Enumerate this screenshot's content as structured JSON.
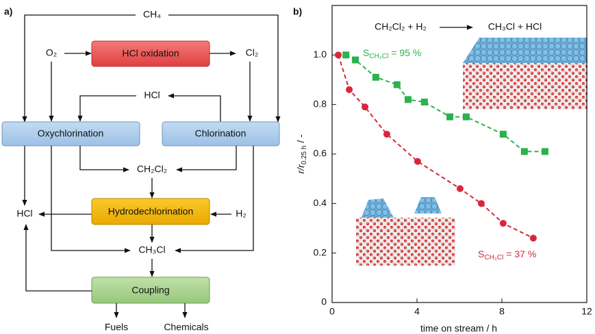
{
  "panel_a": {
    "label": "a)",
    "nodes": [
      "CH₄",
      "O₂",
      "HCl oxidation",
      "Cl₂",
      "HCl",
      "Oxychlorination",
      "Chlorination",
      "CH₂Cl₂",
      "HCl",
      "Hydrodechlorination",
      "H₂",
      "CH₃Cl",
      "Coupling",
      "Fuels",
      "Chemicals"
    ]
  },
  "chart_data": {
    "type": "scatter",
    "label": "b)",
    "reaction": {
      "reactants": "CH₂Cl₂ + H₂",
      "products": "CH₃Cl + HCl"
    },
    "xlabel": "time on stream / h",
    "ylabel": {
      "main": "r/r",
      "subscript": "0.25 h",
      "unit": "/ -"
    },
    "xlim": [
      0,
      12
    ],
    "xticks": [
      0,
      4,
      8,
      12
    ],
    "ylim": [
      0,
      1.2
    ],
    "yticks": [
      0,
      0.2,
      0.4,
      0.6,
      0.8,
      {
        "value": 1,
        "label": "1.0"
      }
    ],
    "series": [
      {
        "color": "#2bb24c",
        "marker": "square",
        "x": [
          0.65,
          1.1,
          2.06,
          3.06,
          3.58,
          4.35,
          5.55,
          6.32,
          8.06,
          9.06,
          10.03
        ],
        "values": [
          1.0,
          0.98,
          0.91,
          0.88,
          0.82,
          0.81,
          0.75,
          0.75,
          0.68,
          0.61,
          0.61
        ],
        "annotation": {
          "symbol": "S",
          "subscript": "CH₃Cl",
          "text": "= 95 %"
        }
      },
      {
        "color": "#d9263a",
        "marker": "circle",
        "x": [
          0.29,
          0.81,
          1.55,
          2.58,
          4.03,
          6.03,
          7.03,
          8.06,
          9.48
        ],
        "values": [
          1.0,
          0.86,
          0.79,
          0.68,
          0.57,
          0.46,
          0.4,
          0.32,
          0.26
        ],
        "annotation": {
          "symbol": "S",
          "subscript": "CH₃Cl",
          "text": "= 37 %"
        }
      }
    ]
  }
}
